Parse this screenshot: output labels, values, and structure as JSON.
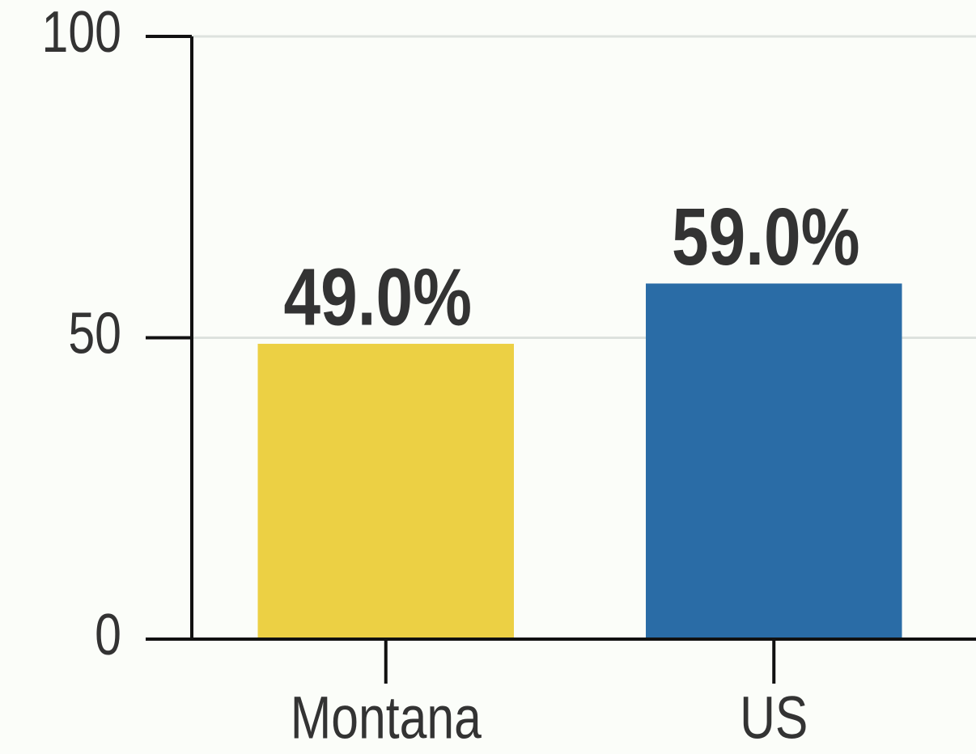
{
  "chart_data": {
    "type": "bar",
    "categories": [
      "Montana",
      "US"
    ],
    "values": [
      49,
      59
    ],
    "value_labels": [
      "49.0%",
      "59.0%"
    ],
    "colors": [
      "#ecd044",
      "#2a6ca6"
    ],
    "ylim": [
      0,
      100
    ],
    "yticks": [
      0,
      50,
      100
    ],
    "grid": true
  }
}
